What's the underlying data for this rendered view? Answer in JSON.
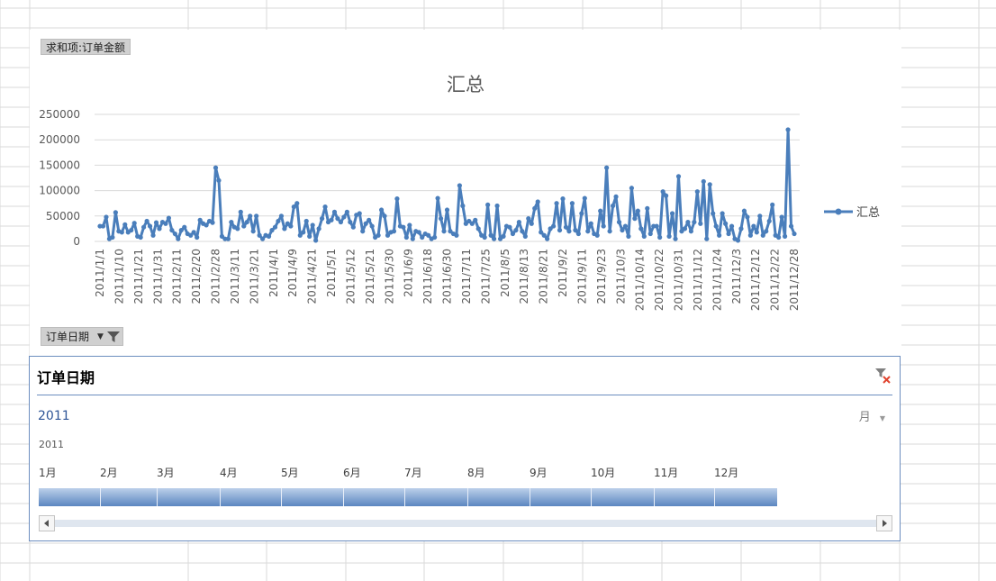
{
  "pivot": {
    "value_field_button": "求和项:订单金额",
    "axis_field_button": "订单日期"
  },
  "slicer": {
    "title": "订单日期",
    "year": "2011",
    "year_small": "2011",
    "level": "月",
    "months": [
      "1月",
      "2月",
      "3月",
      "4月",
      "5月",
      "6月",
      "7月",
      "8月",
      "9月",
      "10月",
      "11月",
      "12月"
    ],
    "colors": {
      "border": "#6c8ebf",
      "bar_top": "#bcd0ea",
      "bar_bottom": "#5b86c0"
    }
  },
  "chart_data": {
    "type": "line",
    "title": "汇总",
    "legend": {
      "position": "right",
      "label": "汇总"
    },
    "ylim": [
      0,
      250000
    ],
    "y_ticks": [
      "250000",
      "200000",
      "150000",
      "100000",
      "50000",
      "0"
    ],
    "x_tick_labels": [
      "2011/1/1",
      "2011/1/10",
      "2011/1/21",
      "2011/1/31",
      "2011/2/11",
      "2011/2/20",
      "2011/2/28",
      "2011/3/11",
      "2011/3/21",
      "2011/4/1",
      "2011/4/9",
      "2011/4/21",
      "2011/5/1",
      "2011/5/12",
      "2011/5/21",
      "2011/5/30",
      "2011/6/9",
      "2011/6/18",
      "2011/6/30",
      "2011/7/11",
      "2011/7/25",
      "2011/8/5",
      "2011/8/13",
      "2011/8/21",
      "2011/9/2",
      "2011/9/11",
      "2011/9/23",
      "2011/10/3",
      "2011/10/14",
      "2011/10/22",
      "2011/10/31",
      "2011/11/12",
      "2011/11/24",
      "2011/12/3",
      "2011/12/12",
      "2011/12/22",
      "2011/12/28"
    ],
    "grid": true,
    "color": "#4a7ebb",
    "series": [
      {
        "name": "汇总",
        "values": [
          30000,
          30000,
          48000,
          5000,
          8000,
          57000,
          20000,
          18000,
          33000,
          18000,
          22000,
          36000,
          10000,
          8000,
          28000,
          40000,
          30000,
          12000,
          37000,
          25000,
          38000,
          35000,
          46000,
          22000,
          15000,
          5000,
          22000,
          28000,
          15000,
          12000,
          18000,
          8000,
          42000,
          35000,
          32000,
          40000,
          37000,
          145000,
          120000,
          10000,
          5000,
          5000,
          38000,
          28000,
          25000,
          58000,
          30000,
          38000,
          50000,
          20000,
          50000,
          12000,
          5000,
          12000,
          10000,
          22000,
          28000,
          40000,
          50000,
          25000,
          35000,
          30000,
          68000,
          75000,
          12000,
          18000,
          40000,
          10000,
          32000,
          2000,
          25000,
          45000,
          68000,
          38000,
          42000,
          58000,
          45000,
          38000,
          48000,
          58000,
          38000,
          28000,
          52000,
          55000,
          20000,
          35000,
          42000,
          30000,
          8000,
          12000,
          62000,
          50000,
          12000,
          18000,
          20000,
          84000,
          30000,
          28000,
          8000,
          32000,
          5000,
          20000,
          18000,
          8000,
          15000,
          12000,
          5000,
          8000,
          85000,
          45000,
          20000,
          62000,
          20000,
          15000,
          12000,
          110000,
          70000,
          35000,
          40000,
          35000,
          42000,
          25000,
          12000,
          8000,
          72000,
          12000,
          5000,
          70000,
          5000,
          10000,
          30000,
          28000,
          15000,
          22000,
          38000,
          20000,
          10000,
          45000,
          35000,
          65000,
          78000,
          18000,
          12000,
          5000,
          25000,
          30000,
          75000,
          22000,
          84000,
          28000,
          20000,
          75000,
          22000,
          15000,
          55000,
          85000,
          20000,
          35000,
          15000,
          12000,
          60000,
          30000,
          145000,
          20000,
          70000,
          88000,
          38000,
          22000,
          30000,
          10000,
          105000,
          45000,
          60000,
          25000,
          10000,
          65000,
          15000,
          30000,
          30000,
          8000,
          98000,
          90000,
          10000,
          55000,
          5000,
          128000,
          20000,
          25000,
          38000,
          20000,
          38000,
          98000,
          35000,
          118000,
          5000,
          112000,
          55000,
          30000,
          12000,
          55000,
          35000,
          15000,
          30000,
          5000,
          2000,
          25000,
          60000,
          48000,
          12000,
          30000,
          18000,
          50000,
          12000,
          20000,
          40000,
          72000,
          12000,
          8000,
          48000,
          10000,
          220000,
          30000,
          15000
        ]
      }
    ]
  }
}
